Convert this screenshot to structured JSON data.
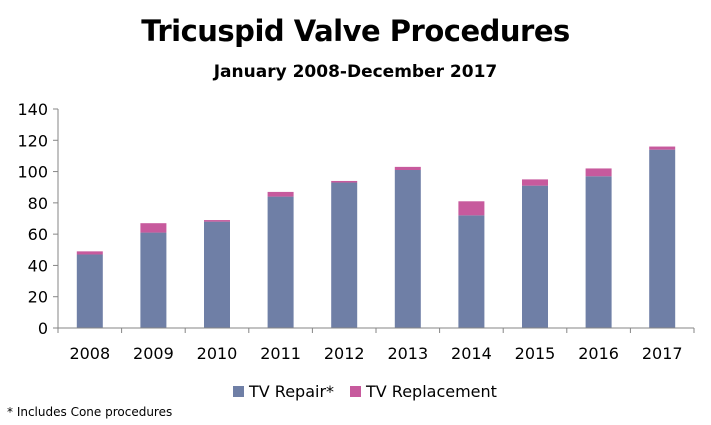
{
  "colors": {
    "repair": "#6f7fa6",
    "replacement": "#c75a9d",
    "axis": "#868686",
    "text": "#000000"
  },
  "footnote": "* Includes Cone procedures",
  "chart_data": {
    "type": "bar",
    "stacked": true,
    "title": "Tricuspid Valve Procedures",
    "subtitle": "January 2008-December 2017",
    "xlabel": "",
    "ylabel": "",
    "categories": [
      "2008",
      "2009",
      "2010",
      "2011",
      "2012",
      "2013",
      "2014",
      "2015",
      "2016",
      "2017"
    ],
    "series": [
      {
        "name": "TV Repair*",
        "values": [
          47,
          61,
          68,
          84,
          93,
          101,
          72,
          91,
          97,
          114
        ]
      },
      {
        "name": "TV Replacement",
        "values": [
          2,
          6,
          1,
          3,
          1,
          2,
          9,
          4,
          5,
          2
        ]
      }
    ],
    "ylim": [
      0,
      140
    ],
    "yticks": [
      0,
      20,
      40,
      60,
      80,
      100,
      120,
      140
    ],
    "grid": false,
    "legend": "bottom"
  }
}
